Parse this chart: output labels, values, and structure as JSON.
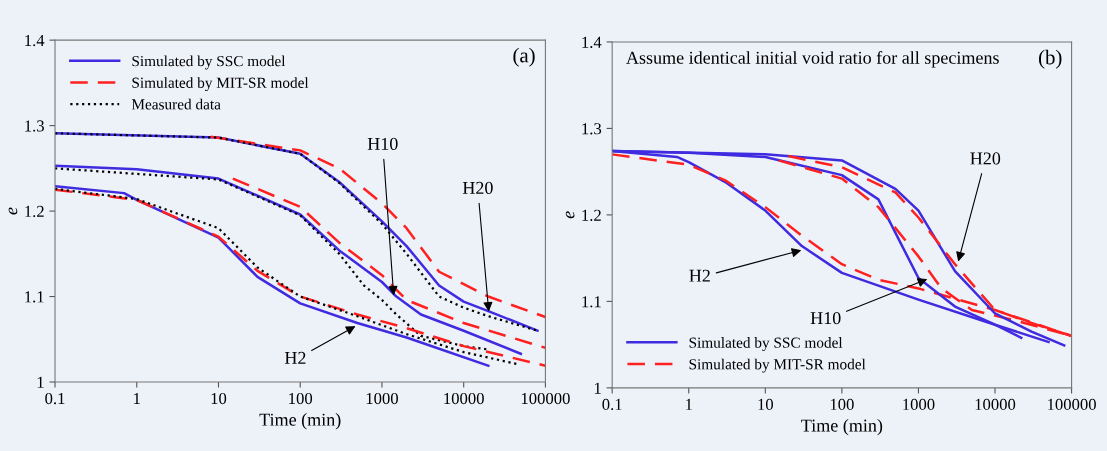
{
  "chart_data": [
    {
      "type": "line",
      "xlabel": "Time (min)",
      "ylabel": "e",
      "log": "x",
      "xlim": [
        0.1,
        100000
      ],
      "ylim": [
        1,
        1.4
      ],
      "xticks": [
        0.1,
        1,
        10,
        100,
        1000,
        10000,
        100000
      ],
      "yticks": [
        1,
        1.1,
        1.2,
        1.3,
        1.4
      ],
      "grid": false,
      "legend": "top left",
      "annotations": [
        "(a)",
        {
          "text": "H2",
          "x": 508,
          "y": 1.067
        },
        {
          "text": "H10",
          "x": 1400,
          "y": 1.098
        },
        {
          "text": "H20",
          "x": 20400,
          "y": 1.079
        }
      ],
      "series": [
        {
          "name": "Simulated by SSC model",
          "color": "#3f2be0",
          "line_style": "solid",
          "x": [
            0.1,
            10,
            100,
            300,
            1000,
            2000,
            5000,
            10000,
            20000,
            80000
          ],
          "values": [
            1.291,
            1.286,
            1.267,
            1.234,
            1.188,
            1.159,
            1.113,
            1.094,
            1.083,
            1.06
          ]
        },
        {
          "name": "Simulated by MIT-SR model",
          "color": "#ff2020",
          "line_style": "dashed",
          "x": [
            8,
            100,
            300,
            1000,
            2000,
            5000,
            20000,
            100000
          ],
          "values": [
            1.287,
            1.271,
            1.25,
            1.209,
            1.18,
            1.129,
            1.1,
            1.076
          ]
        },
        {
          "name": "Measured data",
          "color": "#000000",
          "line_style": "dotted",
          "x": [
            0.1,
            10,
            100,
            300,
            1000,
            2000,
            5000,
            10000,
            20000,
            80000
          ],
          "values": [
            1.291,
            1.286,
            1.267,
            1.233,
            1.185,
            1.15,
            1.1,
            1.087,
            1.077,
            1.06
          ]
        },
        {
          "color": "#3f2be0",
          "line_style": "solid",
          "x": [
            0.1,
            1,
            10,
            100,
            300,
            1000,
            1500,
            3000,
            10000,
            50000
          ],
          "values": [
            1.253,
            1.249,
            1.238,
            1.196,
            1.154,
            1.117,
            1.1,
            1.079,
            1.06,
            1.033
          ]
        },
        {
          "color": "#ff2020",
          "line_style": "dashed",
          "x": [
            15,
            100,
            300,
            1000,
            2000,
            10000,
            100000
          ],
          "values": [
            1.238,
            1.205,
            1.163,
            1.125,
            1.096,
            1.069,
            1.04
          ]
        },
        {
          "color": "#000000",
          "line_style": "dotted",
          "x": [
            0.1,
            10,
            100,
            300,
            600,
            1000,
            1500,
            3000,
            10000,
            20000
          ],
          "values": [
            1.25,
            1.237,
            1.195,
            1.15,
            1.113,
            1.096,
            1.079,
            1.054,
            1.042,
            1.038
          ]
        },
        {
          "color": "#3f2be0",
          "line_style": "solid",
          "x": [
            0.1,
            0.7,
            1,
            3,
            10,
            30,
            100,
            500,
            2000,
            20000
          ],
          "values": [
            1.229,
            1.221,
            1.213,
            1.192,
            1.169,
            1.123,
            1.092,
            1.069,
            1.052,
            1.019
          ]
        },
        {
          "color": "#ff2020",
          "line_style": "dashed",
          "x": [
            0.1,
            1,
            10,
            30,
            100,
            500,
            2000,
            10000,
            100000
          ],
          "values": [
            1.225,
            1.213,
            1.17,
            1.13,
            1.1,
            1.079,
            1.063,
            1.042,
            1.019
          ]
        },
        {
          "color": "#000000",
          "line_style": "dotted",
          "x": [
            0.1,
            1,
            10,
            30,
            100,
            500,
            2000,
            10000,
            45000
          ],
          "values": [
            1.226,
            1.214,
            1.18,
            1.134,
            1.1,
            1.077,
            1.056,
            1.035,
            1.021
          ]
        }
      ]
    },
    {
      "type": "line",
      "xlabel": "Time (min)",
      "ylabel": "e",
      "log": "x",
      "xlim": [
        0.1,
        100000
      ],
      "ylim": [
        1,
        1.4
      ],
      "xticks": [
        0.1,
        1,
        10,
        100,
        1000,
        10000,
        100000
      ],
      "yticks": [
        1,
        1.1,
        1.2,
        1.3,
        1.4
      ],
      "grid": false,
      "legend": "bottom left",
      "annotations": [
        "Assume identical initial void ratio for all specimens",
        "(b)",
        {
          "text": "H2",
          "x": 32,
          "y": 1.16
        },
        {
          "text": "H10",
          "x": 1410,
          "y": 1.127
        },
        {
          "text": "H20",
          "x": 3240,
          "y": 1.143
        }
      ],
      "series": [
        {
          "name": "Simulated by SSC model",
          "color": "#3f2be0",
          "line_style": "solid",
          "x": [
            0.1,
            0.7,
            1,
            3,
            10,
            30,
            100,
            1000,
            10000,
            22000
          ],
          "values": [
            1.274,
            1.267,
            1.261,
            1.238,
            1.205,
            1.164,
            1.133,
            1.102,
            1.073,
            1.058
          ]
        },
        {
          "name": "Simulated by MIT-SR model",
          "color": "#ff2020",
          "line_style": "dashed",
          "x": [
            0.1,
            1,
            3,
            10,
            30,
            100,
            300,
            1000,
            10000,
            100000
          ],
          "values": [
            1.27,
            1.258,
            1.24,
            1.209,
            1.176,
            1.143,
            1.125,
            1.115,
            1.09,
            1.06
          ]
        },
        {
          "color": "#3f2be0",
          "line_style": "solid",
          "x": [
            0.1,
            1,
            10,
            100,
            300,
            1000,
            3000,
            10000,
            50000
          ],
          "values": [
            1.274,
            1.272,
            1.267,
            1.246,
            1.218,
            1.127,
            1.094,
            1.073,
            1.053
          ]
        },
        {
          "color": "#ff2020",
          "line_style": "dashed",
          "x": [
            15,
            100,
            300,
            1000,
            2000,
            5000,
            20000,
            100000
          ],
          "values": [
            1.263,
            1.242,
            1.209,
            1.152,
            1.115,
            1.09,
            1.077,
            1.06
          ]
        },
        {
          "color": "#3f2be0",
          "line_style": "solid",
          "x": [
            0.1,
            10,
            100,
            500,
            1000,
            3000,
            10000,
            30000,
            80000
          ],
          "values": [
            1.274,
            1.27,
            1.263,
            1.23,
            1.205,
            1.135,
            1.086,
            1.065,
            1.049
          ]
        },
        {
          "color": "#ff2020",
          "line_style": "dashed",
          "x": [
            20,
            100,
            500,
            1000,
            3000,
            10000,
            30000,
            100000
          ],
          "values": [
            1.268,
            1.255,
            1.226,
            1.197,
            1.143,
            1.09,
            1.075,
            1.06
          ]
        }
      ]
    }
  ]
}
